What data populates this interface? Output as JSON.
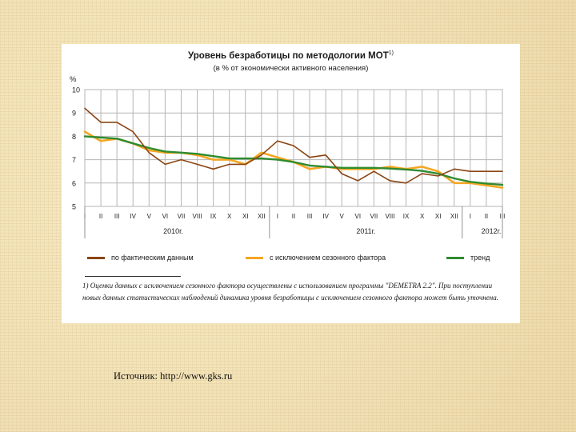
{
  "source": "Источник: http://www.gks.ru",
  "footnote": "1) Оценки данных с исключением сезонного фактора осуществлены с использованием программы \"DEMETRA 2.2\". При поступлении новых данных статистических наблюдений динамика уровня безработицы с исключением сезонного фактора может быть уточнена.",
  "colors": {
    "actual": "#8b4513",
    "seasonal": "#f5a623",
    "trend": "#2f8b2f",
    "grid": "#b5b5b5",
    "axis": "#555555"
  },
  "chart_data": {
    "type": "line",
    "title": "Уровень безработицы по методологии МОТ",
    "title_superscript": "1)",
    "subtitle": "(в % от экономически активного населения)",
    "ylabel": "%",
    "ylim": [
      5,
      10
    ],
    "yticks": [
      "10",
      "9",
      "8",
      "7",
      "6",
      "5"
    ],
    "grid": true,
    "categories": [
      "I",
      "II",
      "III",
      "IV",
      "V",
      "VI",
      "VII",
      "VIII",
      "IX",
      "X",
      "XI",
      "XII",
      "I",
      "II",
      "III",
      "IV",
      "V",
      "VI",
      "VII",
      "VIII",
      "IX",
      "X",
      "XI",
      "XII",
      "I",
      "II",
      "III"
    ],
    "years": [
      "2010г.",
      "2011г.",
      "2012г."
    ],
    "legend_position": "bottom",
    "series": [
      {
        "key": "actual",
        "name": "по фактическим данным",
        "values": [
          9.2,
          8.6,
          8.6,
          8.2,
          7.3,
          6.8,
          7.0,
          6.8,
          6.6,
          6.8,
          6.8,
          7.2,
          7.8,
          7.6,
          7.1,
          7.2,
          6.4,
          6.1,
          6.5,
          6.1,
          6.0,
          6.4,
          6.3,
          6.6,
          6.5,
          6.5,
          6.5
        ]
      },
      {
        "key": "seasonal",
        "name": "с исключением сезонного фактора",
        "values": [
          8.2,
          7.8,
          7.9,
          7.7,
          7.4,
          7.3,
          7.3,
          7.2,
          7.0,
          7.0,
          6.8,
          7.3,
          7.1,
          6.9,
          6.6,
          6.7,
          6.6,
          6.6,
          6.6,
          6.7,
          6.6,
          6.7,
          6.5,
          6.0,
          6.0,
          5.9,
          5.8
        ]
      },
      {
        "key": "trend",
        "name": "тренд",
        "values": [
          8.0,
          7.95,
          7.9,
          7.7,
          7.5,
          7.35,
          7.3,
          7.25,
          7.15,
          7.05,
          7.05,
          7.05,
          7.0,
          6.9,
          6.75,
          6.7,
          6.65,
          6.65,
          6.65,
          6.62,
          6.58,
          6.52,
          6.4,
          6.2,
          6.05,
          5.98,
          5.92
        ]
      }
    ]
  }
}
